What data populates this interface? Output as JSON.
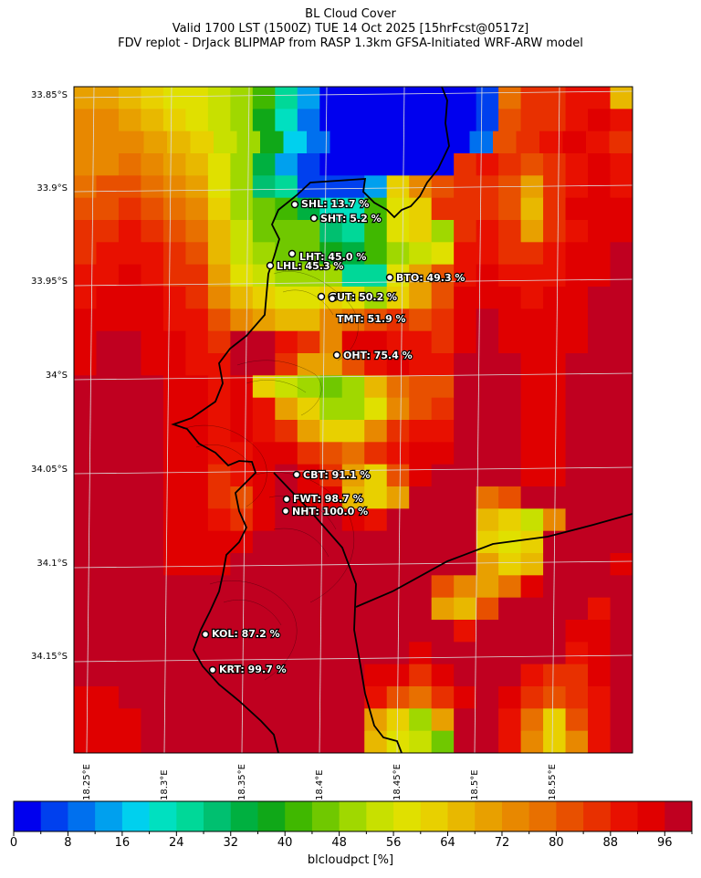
{
  "header": {
    "title": "BL Cloud Cover",
    "subtitle1": "Valid 1700 LST (1500Z) TUE 14 Oct 2025 [15hrFcst@0517z]",
    "subtitle2": "FDV replot - DrJack BLIPMAP from RASP 1.3km GFSA-Initiated WRF-ARW model"
  },
  "map": {
    "lat_ticks": [
      "33.85°S",
      "33.9°S",
      "33.95°S",
      "34°S",
      "34.05°S",
      "34.1°S",
      "34.15°S"
    ],
    "lon_ticks": [
      "18.25°E",
      "18.3°E",
      "18.35°E",
      "18.4°E",
      "18.45°E",
      "18.5°E",
      "18.55°E"
    ],
    "sites": [
      {
        "code": "SHL",
        "label": "SHL: 13.7 %",
        "value": 13.7
      },
      {
        "code": "SHT",
        "label": "SHT: 5.2 %",
        "value": 5.2
      },
      {
        "code": "LHT",
        "label": "LHT: 45.0 %",
        "value": 45.0
      },
      {
        "code": "LHL",
        "label": "LHL: 45.3 %",
        "value": 45.3
      },
      {
        "code": "BTO",
        "label": "BTO: 49.3 %",
        "value": 49.3
      },
      {
        "code": "GUT",
        "label": "GUT: 50.2 %",
        "value": 50.2
      },
      {
        "code": "TMT",
        "label": "TMT: 51.9 %",
        "value": 51.9
      },
      {
        "code": "OHT",
        "label": "OHT: 75.4 %",
        "value": 75.4
      },
      {
        "code": "CBT",
        "label": "CBT: 91.1 %",
        "value": 91.1
      },
      {
        "code": "FWT",
        "label": "FWT: 98.7 %",
        "value": 98.7
      },
      {
        "code": "NHT",
        "label": "NHT: 100.0 %",
        "value": 100.0
      },
      {
        "code": "KOL",
        "label": "KOL: 87.2 %",
        "value": 87.2
      },
      {
        "code": "KRT",
        "label": "KRT: 99.7 %",
        "value": 99.7
      }
    ]
  },
  "colorbar": {
    "labels": [
      "0",
      "8",
      "16",
      "24",
      "32",
      "40",
      "48",
      "56",
      "64",
      "72",
      "80",
      "88",
      "96"
    ],
    "units": "blcloudpct [%]",
    "min": 0,
    "max": 100,
    "step": 4,
    "colors": [
      "#0000ee",
      "#0040ee",
      "#0070ee",
      "#00a0ee",
      "#00d0ee",
      "#00e0c0",
      "#00d898",
      "#00c070",
      "#00b040",
      "#10a818",
      "#40b800",
      "#70c800",
      "#a0d800",
      "#c8e000",
      "#e0e000",
      "#e8d000",
      "#e8b800",
      "#e8a000",
      "#e88800",
      "#e87000",
      "#e85000",
      "#e83000",
      "#e81000",
      "#e00000",
      "#c00020"
    ]
  }
}
